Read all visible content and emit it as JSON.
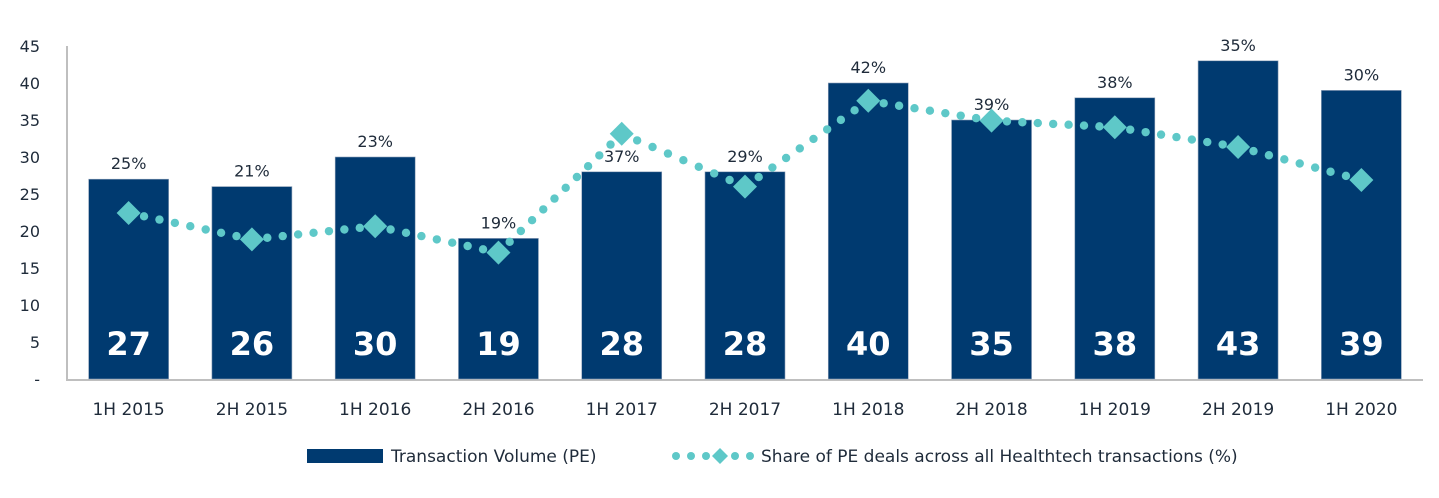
{
  "chart_data": {
    "type": "bar",
    "title": "",
    "xlabel": "",
    "ylabel": "",
    "ylim": [
      0,
      45
    ],
    "yticks": [
      0,
      5,
      10,
      15,
      20,
      25,
      30,
      35,
      40,
      45
    ],
    "ytick_labels": [
      "-",
      "5",
      "10",
      "15",
      "20",
      "25",
      "30",
      "35",
      "40",
      "45"
    ],
    "grid": false,
    "legend_position": "bottom",
    "categories": [
      "1H 2015",
      "2H 2015",
      "1H 2016",
      "2H 2016",
      "1H 2017",
      "2H 2017",
      "1H 2018",
      "2H 2018",
      "1H 2019",
      "2H 2019",
      "1H 2020"
    ],
    "series": [
      {
        "name": "Transaction Volume (PE)",
        "type": "bar",
        "color": "#003a70",
        "values": [
          27,
          26,
          30,
          19,
          28,
          28,
          40,
          35,
          38,
          43,
          39
        ],
        "labels": [
          "27",
          "26",
          "30",
          "19",
          "28",
          "28",
          "40",
          "35",
          "38",
          "43",
          "39"
        ]
      },
      {
        "name": "Share of PE deals across all Healthtech transactions (%)",
        "type": "line",
        "style": "dotted-with-diamond-markers",
        "color": "#5ec8c8",
        "axis": "secondary-hidden",
        "values": [
          25,
          21,
          23,
          19,
          37,
          29,
          42,
          39,
          38,
          35,
          30
        ],
        "labels": [
          "25%",
          "21%",
          "23%",
          "19%",
          "37%",
          "29%",
          "42%",
          "39%",
          "38%",
          "35%",
          "30%"
        ]
      }
    ]
  }
}
